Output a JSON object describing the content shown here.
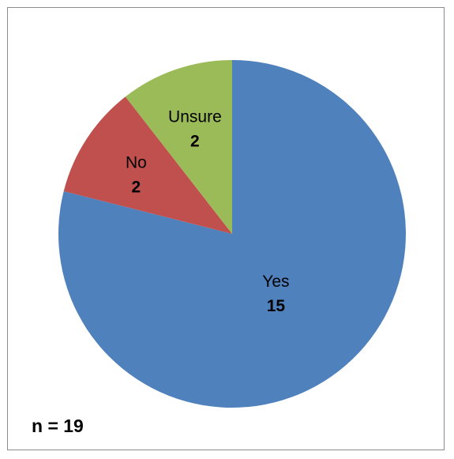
{
  "chart_data": {
    "type": "pie",
    "title": "",
    "categories": [
      "Yes",
      "No",
      "Unsure"
    ],
    "values": [
      15,
      2,
      2
    ],
    "colors": [
      "#4f81bd",
      "#c0504d",
      "#9bbb59"
    ],
    "start_angle_deg": 0,
    "direction": "clockwise",
    "data_labels": "category name and value inside slices",
    "legend": "none",
    "annotation": "n = 19"
  }
}
